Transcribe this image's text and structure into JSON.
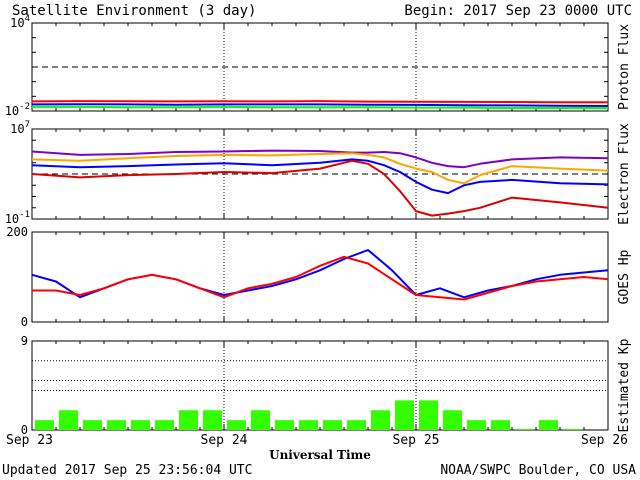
{
  "header": {
    "title": "Satellite Environment (3 day)",
    "begin": "Begin:  2017 Sep 23 0000 UTC"
  },
  "footer": {
    "updated": "Updated 2017 Sep 25 23:56:04 UTC",
    "source": "NOAA/SWPC Boulder, CO USA"
  },
  "colors": {
    "red": "#ff0000",
    "blue": "#0000ff",
    "green": "#00ff00",
    "orange": "#ffa500",
    "purple": "#8000c0",
    "dark_red": "#dd0000",
    "kp_bar": "#33ff00"
  },
  "chart_data": [
    {
      "type": "line",
      "ylabel": "Proton Flux",
      "scale": "log",
      "y_ticks": [
        {
          "base": "10",
          "exp": "4",
          "value": 10000
        },
        {
          "base": "10",
          "exp": "-2",
          "value": 0.01
        }
      ],
      "ylim": [
        0.01,
        10000
      ],
      "threshold": 10,
      "x": [
        0,
        6,
        12,
        18,
        24,
        30,
        36,
        42,
        48,
        54,
        60,
        66,
        72
      ],
      "series": [
        {
          "color": "red",
          "values": [
            0.045,
            0.047,
            0.046,
            0.045,
            0.046,
            0.045,
            0.047,
            0.044,
            0.043,
            0.042,
            0.041,
            0.04,
            0.039
          ]
        },
        {
          "color": "blue",
          "values": [
            0.028,
            0.029,
            0.028,
            0.027,
            0.028,
            0.028,
            0.028,
            0.027,
            0.026,
            0.025,
            0.024,
            0.023,
            0.022
          ]
        },
        {
          "color": "green",
          "values": [
            0.019,
            0.019,
            0.018,
            0.018,
            0.019,
            0.018,
            0.018,
            0.018,
            0.017,
            0.017,
            0.016,
            0.016,
            0.016
          ]
        }
      ]
    },
    {
      "type": "line",
      "ylabel": "Electron Flux",
      "scale": "log",
      "y_ticks": [
        {
          "base": "10",
          "exp": "7",
          "value": 10000000
        },
        {
          "base": "10",
          "exp": "-1",
          "value": 0.1
        }
      ],
      "ylim": [
        0.1,
        10000000
      ],
      "threshold": 1000,
      "x": [
        0,
        6,
        12,
        18,
        24,
        30,
        36,
        40,
        42,
        44,
        46,
        48,
        50,
        52,
        54,
        56,
        60,
        66,
        72
      ],
      "series": [
        {
          "color": "purple",
          "values": [
            100000,
            50000,
            60000,
            90000,
            100000,
            120000,
            110000,
            80000,
            80000,
            90000,
            70000,
            30000,
            10000,
            5000,
            4000,
            8000,
            20000,
            30000,
            25000
          ]
        },
        {
          "color": "orange",
          "values": [
            20000,
            15000,
            25000,
            40000,
            50000,
            45000,
            60000,
            70000,
            50000,
            30000,
            8000,
            3000,
            1500,
            300,
            150,
            800,
            5000,
            3000,
            2000
          ]
        },
        {
          "color": "blue",
          "values": [
            6000,
            4000,
            5000,
            7000,
            9000,
            6000,
            10000,
            20000,
            15000,
            6000,
            1500,
            200,
            40,
            20,
            100,
            200,
            300,
            150,
            120
          ]
        },
        {
          "color": "dark_red",
          "values": [
            1000,
            500,
            800,
            1000,
            1500,
            1200,
            3000,
            15000,
            8000,
            1000,
            30,
            0.5,
            0.2,
            0.3,
            0.5,
            1,
            8,
            3,
            1
          ]
        }
      ]
    },
    {
      "type": "line",
      "ylabel": "GOES Hp",
      "scale": "linear",
      "y_ticks": [
        {
          "label": "200",
          "value": 200
        },
        {
          "label": "0",
          "value": 0
        }
      ],
      "ylim": [
        0,
        200
      ],
      "x": [
        0,
        3,
        6,
        9,
        12,
        15,
        18,
        21,
        24,
        27,
        30,
        33,
        36,
        39,
        42,
        45,
        48,
        51,
        54,
        57,
        60,
        63,
        66,
        69,
        72
      ],
      "series": [
        {
          "color": "blue",
          "values": [
            105,
            90,
            55,
            75,
            95,
            105,
            95,
            75,
            60,
            70,
            80,
            95,
            115,
            140,
            160,
            115,
            60,
            75,
            55,
            70,
            80,
            95,
            105,
            110,
            115
          ]
        },
        {
          "color": "red",
          "values": [
            70,
            70,
            60,
            75,
            95,
            105,
            95,
            75,
            55,
            75,
            85,
            100,
            125,
            145,
            130,
            95,
            60,
            55,
            50,
            65,
            80,
            90,
            95,
            100,
            95
          ]
        }
      ]
    },
    {
      "type": "bar",
      "ylabel": "Estimated Kp",
      "y_ticks": [
        {
          "label": "9",
          "value": 9
        },
        {
          "label": "0",
          "value": 0
        }
      ],
      "ylim": [
        0,
        9
      ],
      "gridlines": [
        4,
        5,
        7
      ],
      "bar_width_hours": 3,
      "values": [
        1,
        2,
        1,
        1,
        1,
        1,
        2,
        2,
        1,
        2,
        1,
        1,
        1,
        1,
        2,
        3,
        3,
        2,
        1,
        1,
        0.1,
        1,
        0.1,
        0
      ]
    }
  ],
  "x_axis": {
    "ticks": [
      {
        "label": "Sep 23",
        "hour": 0
      },
      {
        "label": "Sep 24",
        "hour": 24
      },
      {
        "label": "Sep 25",
        "hour": 48
      },
      {
        "label": "Sep 26",
        "hour": 72
      }
    ],
    "label": "Universal Time",
    "range": [
      0,
      72
    ]
  }
}
